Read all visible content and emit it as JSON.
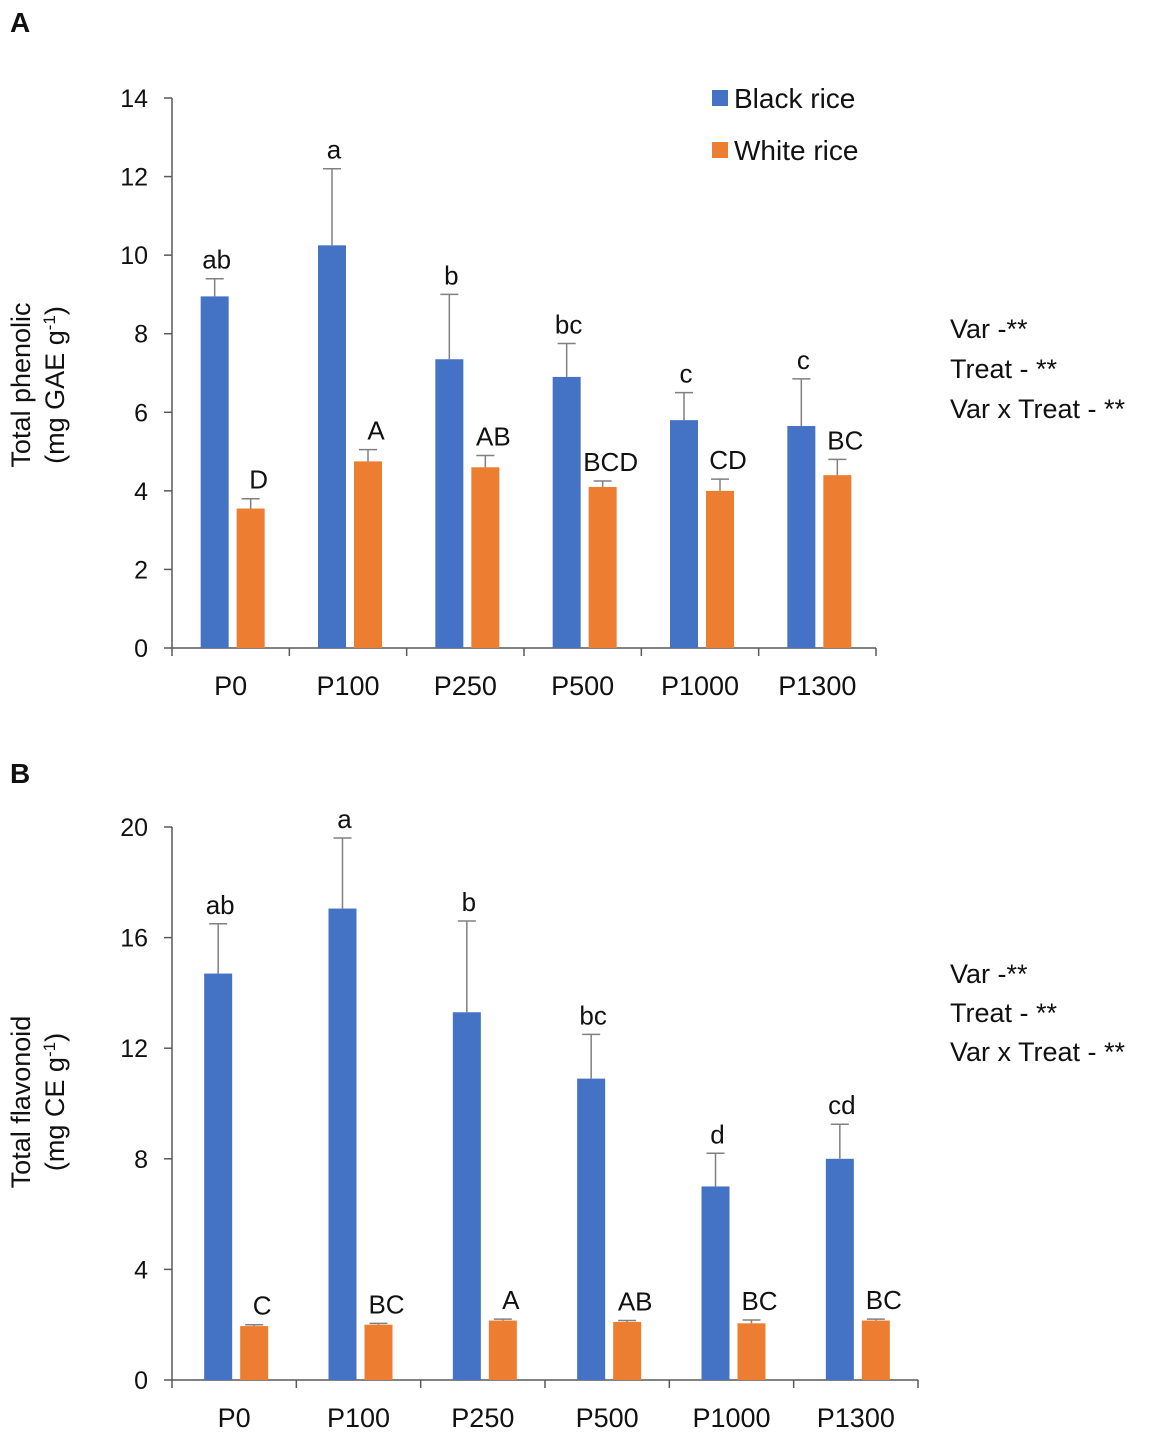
{
  "colors": {
    "black_rice": "#4472C4",
    "white_rice": "#ED7D31",
    "axis": "#595959",
    "error_bar": "#808080"
  },
  "chart_data": [
    {
      "panel": "A",
      "type": "bar",
      "title": "",
      "ylabel_line1": "Total phenolic",
      "ylabel_line2": "(mg GAE g",
      "ylabel_sup": "-1",
      "ylabel_end": ")",
      "xlabel": "",
      "ylim": [
        0,
        14
      ],
      "yticks": [
        0,
        2,
        4,
        6,
        8,
        10,
        12,
        14
      ],
      "categories": [
        "P0",
        "P100",
        "P250",
        "P500",
        "P1000",
        "P1300"
      ],
      "series": [
        {
          "name": "Black rice",
          "values": [
            8.95,
            10.25,
            7.35,
            6.9,
            5.8,
            5.65
          ],
          "errors": [
            0.45,
            1.95,
            1.65,
            0.85,
            0.7,
            1.2
          ],
          "labels": [
            "ab",
            "a",
            "b",
            "bc",
            "c",
            "c"
          ]
        },
        {
          "name": "White rice",
          "values": [
            3.55,
            4.75,
            4.6,
            4.1,
            4.0,
            4.4
          ],
          "errors": [
            0.25,
            0.3,
            0.3,
            0.15,
            0.3,
            0.4
          ],
          "labels": [
            "D",
            "A",
            "AB",
            "BCD",
            "CD",
            "BC"
          ]
        }
      ],
      "legend": [
        "Black rice",
        "White rice"
      ],
      "legend_position": "top-right",
      "stats": [
        "Var -**",
        "Treat - **",
        "Var x Treat - **"
      ]
    },
    {
      "panel": "B",
      "type": "bar",
      "title": "",
      "ylabel_line1": "Total flavonoid",
      "ylabel_line2": "(mg CE g",
      "ylabel_sup": "-1",
      "ylabel_end": ")",
      "xlabel": "",
      "ylim": [
        0,
        20
      ],
      "yticks": [
        0,
        4,
        8,
        12,
        16,
        20
      ],
      "categories": [
        "P0",
        "P100",
        "P250",
        "P500",
        "P1000",
        "P1300"
      ],
      "series": [
        {
          "name": "Black rice",
          "values": [
            14.7,
            17.05,
            13.3,
            10.9,
            7.0,
            8.0
          ],
          "errors": [
            1.8,
            2.55,
            3.3,
            1.6,
            1.2,
            1.25
          ],
          "labels": [
            "ab",
            "a",
            "b",
            "bc",
            "d",
            "cd"
          ]
        },
        {
          "name": "White rice",
          "values": [
            1.95,
            2.0,
            2.15,
            2.1,
            2.05,
            2.15
          ],
          "errors": [
            0.05,
            0.05,
            0.05,
            0.05,
            0.12,
            0.05
          ],
          "labels": [
            "C",
            "BC",
            "A",
            "AB",
            "BC",
            "BC"
          ]
        }
      ],
      "stats": [
        "Var -**",
        "Treat - **",
        "Var x Treat - **"
      ]
    }
  ]
}
